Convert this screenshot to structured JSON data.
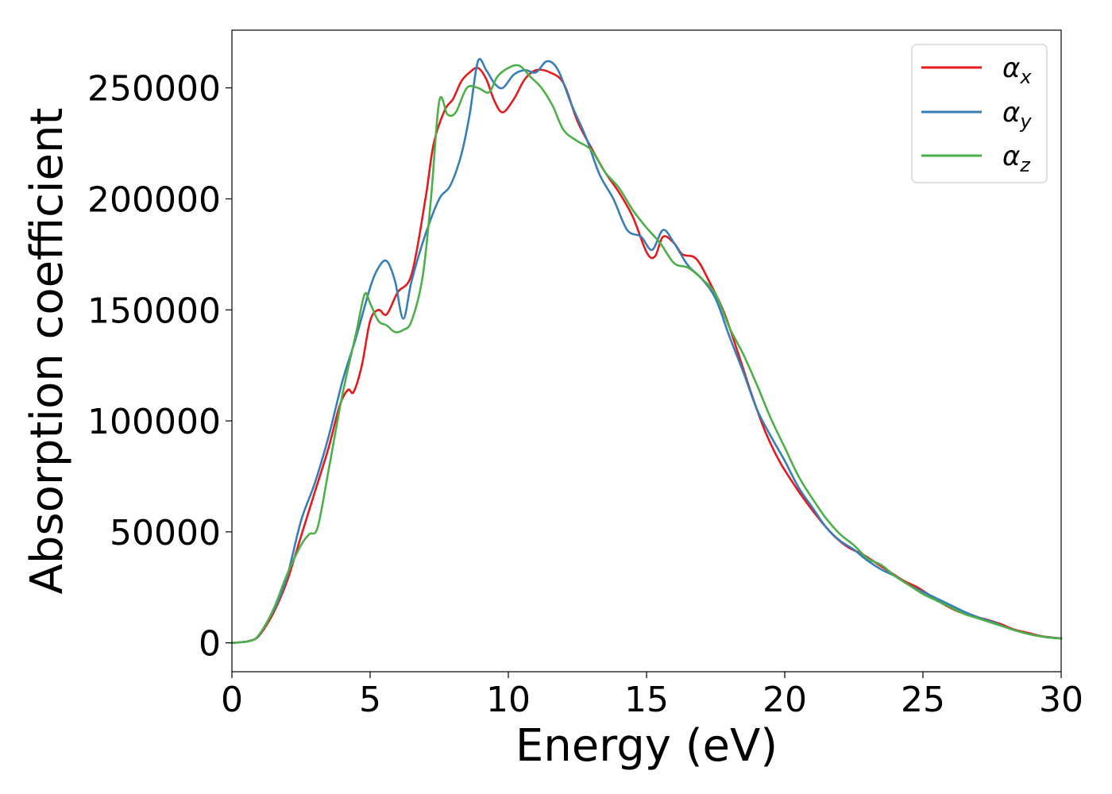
{
  "chart_data": {
    "type": "line",
    "title": "",
    "xlabel": "Energy (eV)",
    "ylabel": "Absorption coefficient",
    "xlim": [
      0,
      30
    ],
    "ylim": [
      -13000,
      276000
    ],
    "xticks": [
      "0",
      "5",
      "10",
      "15",
      "20",
      "25",
      "30"
    ],
    "yticks": [
      "0",
      "50000",
      "100000",
      "150000",
      "200000",
      "250000"
    ],
    "grid": false,
    "legend_position": "top-right",
    "series": [
      {
        "name": "α",
        "subscript": "x",
        "color": "#e41a1c",
        "x": [
          0,
          0.5,
          0.8,
          1.0,
          1.3,
          1.6,
          2.0,
          2.5,
          3.0,
          3.5,
          3.9,
          4.2,
          4.4,
          4.7,
          5.0,
          5.3,
          5.6,
          6.0,
          6.5,
          7.0,
          7.3,
          7.7,
          8.0,
          8.3,
          8.6,
          8.9,
          9.2,
          9.5,
          9.8,
          10.2,
          10.6,
          11.0,
          11.5,
          12.0,
          12.5,
          13.0,
          13.5,
          14.0,
          14.5,
          15.0,
          15.3,
          15.6,
          16.0,
          16.3,
          16.8,
          17.3,
          17.8,
          18.3,
          18.8,
          19.3,
          19.8,
          20.3,
          20.8,
          21.3,
          21.8,
          22.3,
          22.8,
          23.3,
          23.8,
          24.3,
          24.8,
          25.3,
          25.8,
          26.3,
          26.8,
          27.3,
          27.8,
          28.3,
          28.8,
          29.3,
          30.0
        ],
        "values": [
          0,
          500,
          1500,
          3500,
          9000,
          16000,
          28000,
          48000,
          68000,
          88000,
          107000,
          114000,
          113000,
          125000,
          145000,
          150000,
          148000,
          158000,
          166000,
          200000,
          225000,
          240000,
          245000,
          253000,
          257000,
          259000,
          254000,
          244000,
          239000,
          245000,
          254000,
          258000,
          257000,
          252000,
          235000,
          223000,
          212000,
          203000,
          192000,
          176000,
          174000,
          183000,
          180000,
          175000,
          173000,
          162000,
          149000,
          131000,
          112000,
          95000,
          82000,
          72000,
          63000,
          55000,
          48000,
          43000,
          40000,
          36000,
          32000,
          28000,
          25000,
          21000,
          17000,
          14000,
          12000,
          10500,
          8500,
          6000,
          4500,
          3000,
          2000
        ]
      },
      {
        "name": "α",
        "subscript": "y",
        "color": "#377eb8",
        "x": [
          0,
          0.5,
          0.8,
          1.0,
          1.3,
          1.6,
          2.0,
          2.5,
          3.0,
          3.5,
          4.0,
          4.5,
          5.0,
          5.3,
          5.6,
          5.9,
          6.2,
          6.5,
          7.0,
          7.5,
          7.9,
          8.3,
          8.6,
          8.9,
          9.2,
          9.5,
          9.8,
          10.2,
          10.6,
          11.0,
          11.4,
          11.8,
          12.3,
          12.8,
          13.3,
          13.8,
          14.3,
          14.8,
          15.2,
          15.6,
          16.0,
          16.5,
          17.0,
          17.5,
          18.0,
          18.5,
          19.0,
          19.5,
          20.0,
          20.5,
          21.0,
          21.5,
          22.0,
          22.5,
          23.0,
          23.5,
          24.0,
          24.5,
          25.0,
          25.5,
          26.0,
          26.5,
          27.0,
          27.5,
          28.0,
          28.5,
          29.0,
          29.5,
          30.0
        ],
        "values": [
          0,
          500,
          1500,
          3800,
          10000,
          17000,
          30000,
          55000,
          72000,
          93000,
          118000,
          138000,
          160000,
          169000,
          172000,
          163000,
          146000,
          163000,
          184000,
          200000,
          206000,
          220000,
          238000,
          262000,
          258000,
          252000,
          250000,
          256000,
          258000,
          257000,
          262000,
          258000,
          242000,
          228000,
          211000,
          200000,
          186000,
          183000,
          177000,
          186000,
          180000,
          170000,
          164000,
          155000,
          138000,
          122000,
          105000,
          93000,
          82000,
          70000,
          61000,
          52000,
          46000,
          42000,
          37000,
          33000,
          30000,
          26000,
          23000,
          20000,
          17000,
          14000,
          11500,
          9500,
          7000,
          5000,
          3500,
          2500,
          2000
        ]
      },
      {
        "name": "α",
        "subscript": "z",
        "color": "#4daf4a",
        "x": [
          0,
          0.5,
          0.8,
          1.0,
          1.3,
          1.6,
          2.0,
          2.5,
          2.8,
          3.1,
          3.5,
          4.0,
          4.5,
          4.8,
          5.0,
          5.3,
          5.6,
          5.9,
          6.2,
          6.5,
          6.9,
          7.2,
          7.5,
          7.8,
          8.1,
          8.5,
          8.9,
          9.3,
          9.6,
          10.0,
          10.4,
          10.8,
          11.2,
          11.6,
          12.0,
          12.5,
          13.0,
          13.5,
          14.0,
          14.5,
          15.0,
          15.5,
          16.0,
          16.5,
          17.0,
          17.5,
          18.0,
          18.5,
          19.0,
          19.5,
          20.0,
          20.5,
          21.0,
          21.5,
          22.0,
          22.5,
          23.0,
          23.5,
          24.0,
          24.5,
          25.0,
          25.5,
          26.0,
          26.5,
          27.0,
          27.5,
          28.0,
          28.5,
          29.0,
          29.5,
          30.0
        ],
        "values": [
          0,
          500,
          1500,
          4000,
          10000,
          18000,
          31000,
          44000,
          49000,
          52000,
          78000,
          112000,
          140000,
          157000,
          153000,
          145000,
          143000,
          140000,
          141000,
          145000,
          165000,
          200000,
          244000,
          238000,
          239000,
          250000,
          250000,
          248000,
          255000,
          259000,
          260000,
          255000,
          250000,
          242000,
          231000,
          226000,
          222000,
          212000,
          205000,
          195000,
          187000,
          180000,
          171000,
          169000,
          164000,
          157000,
          142000,
          130000,
          116000,
          101000,
          88000,
          75000,
          65000,
          56000,
          49000,
          44000,
          38000,
          35000,
          30000,
          26000,
          22000,
          19000,
          16000,
          13000,
          11000,
          9000,
          7000,
          5000,
          3500,
          2500,
          2000
        ]
      }
    ]
  }
}
